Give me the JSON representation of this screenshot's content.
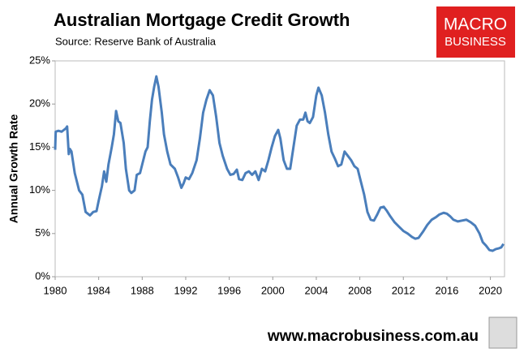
{
  "chart_data": {
    "type": "line",
    "title": "Australian Mortgage Credit Growth",
    "subtitle": "Source: Reserve Bank of Australia",
    "y_label": "Annual Growth Rate",
    "logo": [
      "MACRO",
      "BUSINESS"
    ],
    "footer": "www.macrobusiness.com.au",
    "grid": false,
    "xlim": [
      1980,
      2021.3
    ],
    "xticks": [
      1980,
      1984,
      1988,
      1992,
      1996,
      2000,
      2004,
      2008,
      2012,
      2016,
      2020
    ],
    "ylim": [
      0,
      25
    ],
    "yticks": [
      {
        "value": 0,
        "label": "0%"
      },
      {
        "value": 5,
        "label": "5%"
      },
      {
        "value": 10,
        "label": "10%"
      },
      {
        "value": 15,
        "label": "15%"
      },
      {
        "value": 20,
        "label": "20%"
      },
      {
        "value": 25,
        "label": "25%"
      }
    ],
    "x": [
      1980.0,
      1980.05,
      1980.3,
      1980.6,
      1981.0,
      1981.1,
      1981.25,
      1981.35,
      1981.5,
      1981.8,
      1982.2,
      1982.5,
      1982.8,
      1983.2,
      1983.5,
      1983.8,
      1984.0,
      1984.3,
      1984.5,
      1984.7,
      1984.9,
      1985.2,
      1985.4,
      1985.6,
      1985.8,
      1986.0,
      1986.3,
      1986.5,
      1986.8,
      1987.0,
      1987.3,
      1987.5,
      1987.8,
      1988.0,
      1988.3,
      1988.5,
      1988.7,
      1988.9,
      1989.1,
      1989.3,
      1989.5,
      1989.8,
      1990.0,
      1990.3,
      1990.6,
      1991.0,
      1991.3,
      1991.6,
      1991.8,
      1992.0,
      1992.3,
      1992.6,
      1993.0,
      1993.3,
      1993.6,
      1993.9,
      1994.2,
      1994.5,
      1994.8,
      1995.1,
      1995.4,
      1995.8,
      1996.1,
      1996.4,
      1996.7,
      1996.9,
      1997.2,
      1997.5,
      1997.8,
      1998.1,
      1998.4,
      1998.7,
      1999.0,
      1999.3,
      1999.6,
      1999.9,
      2000.2,
      2000.5,
      2000.7,
      2001.0,
      2001.3,
      2001.6,
      2001.9,
      2002.2,
      2002.5,
      2002.8,
      2003.0,
      2003.2,
      2003.4,
      2003.7,
      2004.0,
      2004.2,
      2004.5,
      2004.8,
      2005.1,
      2005.4,
      2005.7,
      2006.0,
      2006.3,
      2006.6,
      2006.9,
      2007.2,
      2007.5,
      2007.8,
      2008.1,
      2008.4,
      2008.7,
      2009.0,
      2009.3,
      2009.6,
      2009.9,
      2010.2,
      2010.5,
      2010.8,
      2011.2,
      2011.6,
      2012.0,
      2012.4,
      2012.8,
      2013.1,
      2013.4,
      2013.8,
      2014.2,
      2014.6,
      2015.0,
      2015.3,
      2015.7,
      2016.0,
      2016.3,
      2016.6,
      2017.0,
      2017.4,
      2017.8,
      2018.2,
      2018.6,
      2019.0,
      2019.3,
      2019.6,
      2019.9,
      2020.2,
      2020.5,
      2020.8,
      2021.0,
      2021.2
    ],
    "series": [
      {
        "color": "#4a7ebb",
        "values": [
          14.7,
          16.8,
          16.9,
          16.8,
          17.2,
          17.4,
          14.2,
          14.8,
          14.5,
          12,
          10,
          9.5,
          7.5,
          7.1,
          7.5,
          7.6,
          8.8,
          10.5,
          12.2,
          11,
          13,
          15,
          16.5,
          19.2,
          18,
          17.8,
          15.5,
          12.5,
          10,
          9.7,
          10,
          11.8,
          12,
          13,
          14.5,
          15,
          18,
          20.5,
          22,
          23.2,
          22,
          19,
          16.5,
          14.5,
          13,
          12.5,
          11.5,
          10.3,
          10.8,
          11.5,
          11.3,
          12,
          13.5,
          16,
          19,
          20.5,
          21.6,
          21,
          18.5,
          15.5,
          14,
          12.5,
          11.8,
          11.9,
          12.4,
          11.3,
          11.2,
          12,
          12.2,
          11.8,
          12.2,
          11.2,
          12.5,
          12.2,
          13.5,
          15,
          16.3,
          17,
          16,
          13.5,
          12.5,
          12.5,
          15,
          17.5,
          18.2,
          18.2,
          19,
          18,
          17.8,
          18.5,
          21,
          21.9,
          21,
          19,
          16.5,
          14.5,
          13.7,
          12.8,
          13,
          14.5,
          14,
          13.5,
          12.8,
          12.5,
          11,
          9.5,
          7.5,
          6.6,
          6.5,
          7.2,
          8,
          8.1,
          7.6,
          7.0,
          6.3,
          5.8,
          5.3,
          5.0,
          4.6,
          4.4,
          4.5,
          5.2,
          6.0,
          6.6,
          6.9,
          7.2,
          7.4,
          7.3,
          7.0,
          6.6,
          6.4,
          6.5,
          6.6,
          6.3,
          5.9,
          5.0,
          4.0,
          3.6,
          3.1,
          3.0,
          3.2,
          3.3,
          3.4,
          3.8
        ]
      }
    ]
  }
}
